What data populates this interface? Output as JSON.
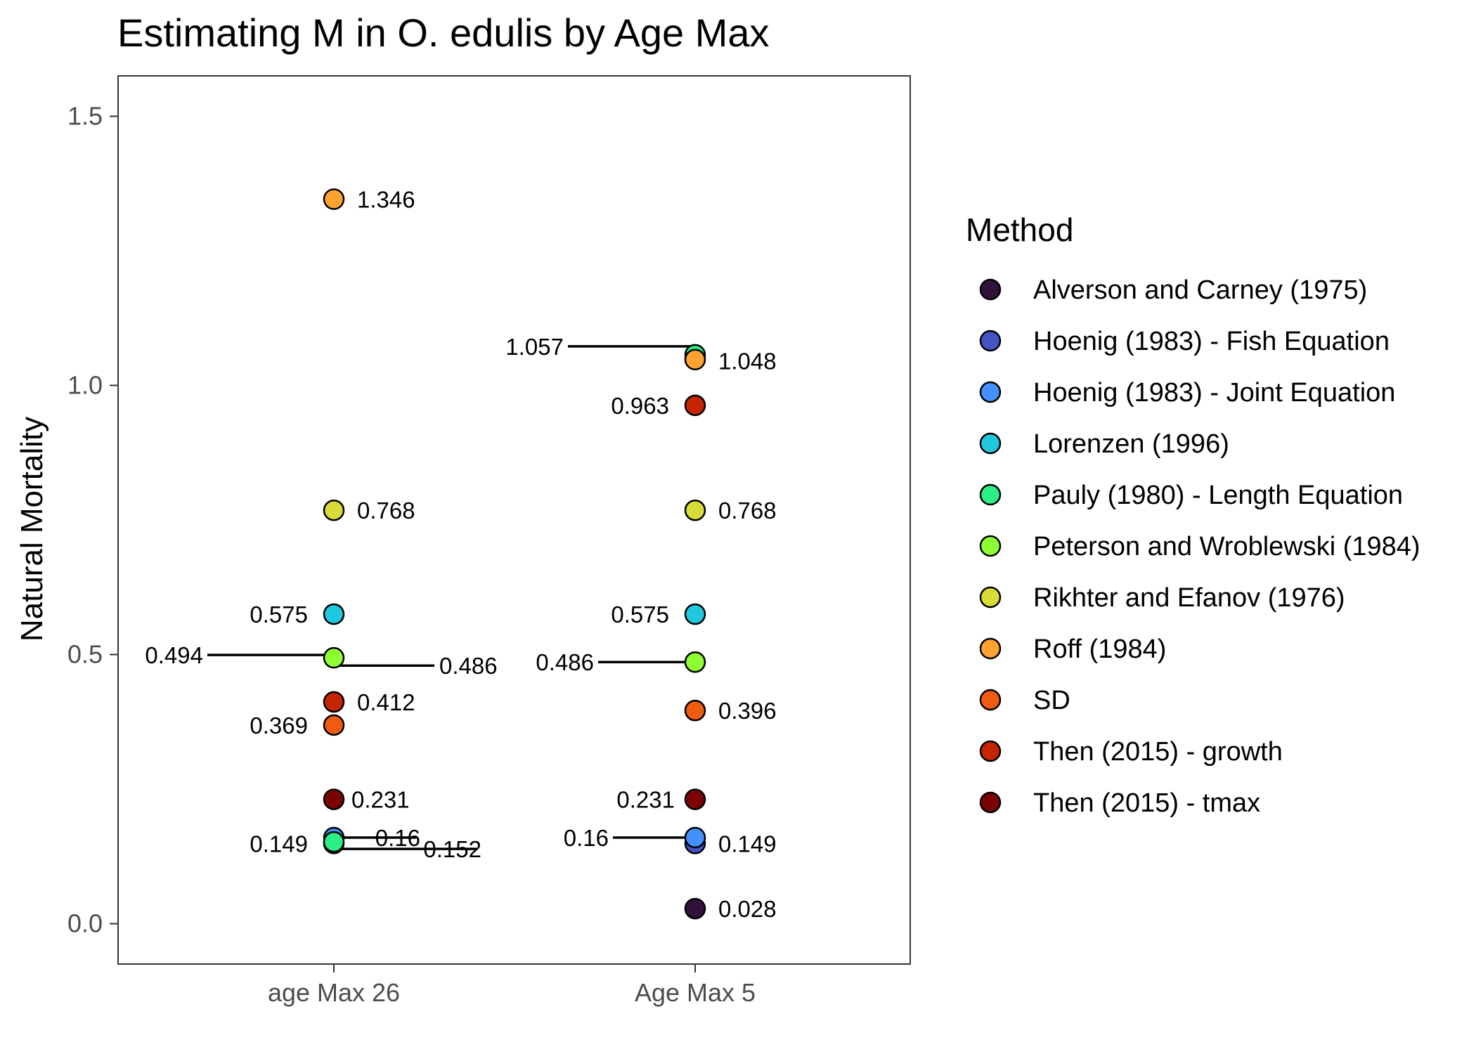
{
  "chart_data": {
    "type": "scatter",
    "title": "Estimating M in O. edulis by Age Max",
    "xlabel": "",
    "ylabel": "Natural Mortality",
    "categories": [
      "age Max 26",
      "Age Max 5"
    ],
    "ylim": [
      -0.075,
      1.575
    ],
    "yticks": [
      "0.0",
      "0.5",
      "1.0",
      "1.5"
    ],
    "grid": false,
    "legend": {
      "title": "Method",
      "placement": "right"
    },
    "series": [
      {
        "name": "Alverson and Carney (1975)",
        "color": "#30123b",
        "values": [
          null,
          0.028
        ],
        "labels": [
          "",
          "0.028"
        ]
      },
      {
        "name": "Hoenig (1983) - Fish Equation",
        "color": "#4454c4",
        "values": [
          0.149,
          0.149
        ],
        "labels": [
          "0.149",
          "0.149"
        ]
      },
      {
        "name": "Hoenig (1983) - Joint Equation",
        "color": "#4490fe",
        "values": [
          0.16,
          0.16
        ],
        "labels": [
          "0.16",
          "0.16"
        ]
      },
      {
        "name": "Lorenzen (1996)",
        "color": "#1fc8de",
        "values": [
          0.575,
          0.575
        ],
        "labels": [
          "0.575",
          "0.575"
        ]
      },
      {
        "name": "Pauly (1980) - Length Equation",
        "color": "#29ef86",
        "values": [
          0.152,
          1.057
        ],
        "labels": [
          "0.152",
          "1.057"
        ]
      },
      {
        "name": "Peterson and Wroblewski (1984)",
        "color": "#8dff33",
        "values": [
          0.494,
          0.486
        ],
        "labels": [
          "0.494",
          "0.486"
        ]
      },
      {
        "name": "Rikhter and Efanov (1976)",
        "color": "#d7dc37",
        "values": [
          0.768,
          0.768
        ],
        "labels": [
          "0.768",
          "0.768"
        ]
      },
      {
        "name": "Roff (1984)",
        "color": "#fea331",
        "values": [
          1.346,
          1.048
        ],
        "labels": [
          "1.346",
          "1.048"
        ]
      },
      {
        "name": "SD",
        "color": "#f05b12",
        "values": [
          0.369,
          0.396
        ],
        "labels": [
          "0.369",
          "0.396"
        ]
      },
      {
        "name": "Then (2015) - growth",
        "color": "#c42503",
        "values": [
          0.412,
          0.963
        ],
        "labels": [
          "0.412",
          "0.963"
        ]
      },
      {
        "name": "Then (2015) - tmax",
        "color": "#7a0403",
        "values": [
          0.231,
          0.231
        ],
        "labels": [
          "0.231",
          "0.231"
        ]
      }
    ],
    "extra_labels": [
      {
        "category": 0,
        "value": 0.486,
        "text": "0.486"
      }
    ]
  }
}
